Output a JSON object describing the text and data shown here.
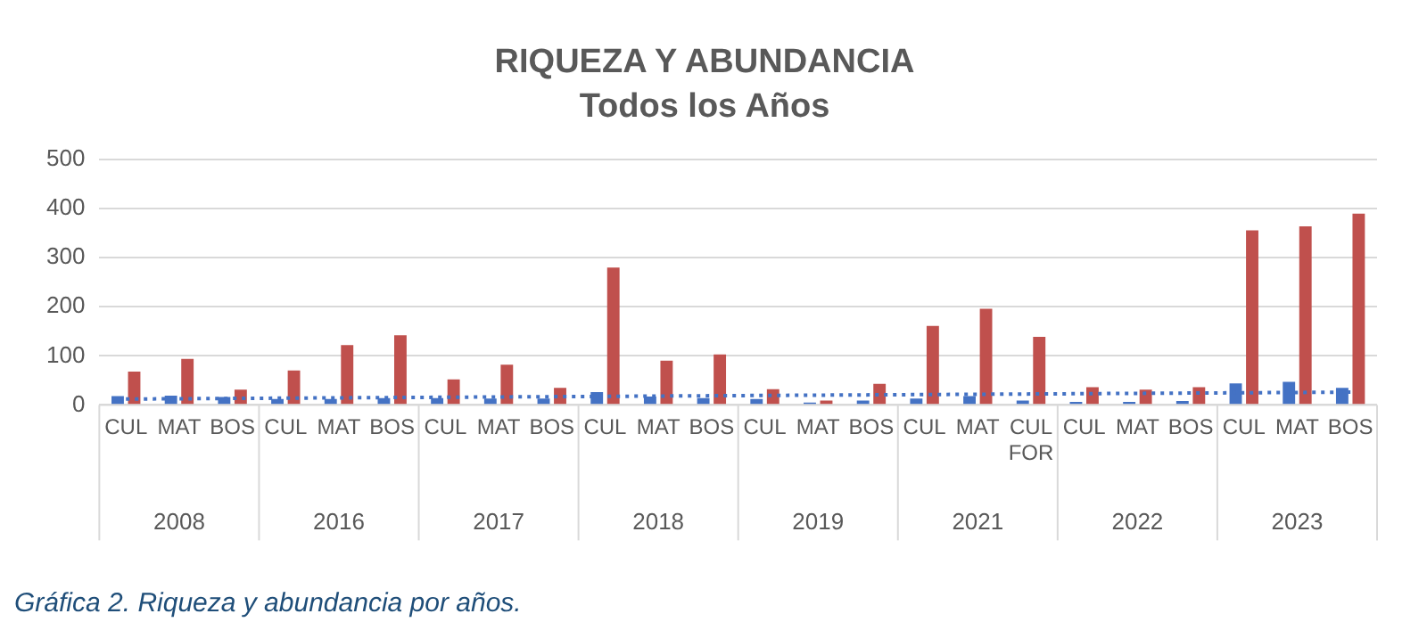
{
  "chart_data": {
    "type": "bar",
    "title": "RIQUEZA Y ABUNDANCIA",
    "subtitle": "Todos los Años",
    "categories": [
      "CUL",
      "MAT",
      "BOS",
      "CUL",
      "MAT",
      "BOS",
      "CUL",
      "MAT",
      "BOS",
      "CUL",
      "MAT",
      "BOS",
      "CUL",
      "MAT",
      "BOS",
      "CUL",
      "MAT",
      "CUL FOR",
      "CUL",
      "MAT",
      "BOS",
      "CUL",
      "MAT",
      "BOS"
    ],
    "series": [
      {
        "color": "#4472c4",
        "values": [
          18,
          19,
          16,
          12,
          12,
          14,
          14,
          13,
          13,
          26,
          17,
          14,
          12,
          5,
          9,
          13,
          18,
          9,
          6,
          6,
          8,
          44,
          47,
          35
        ]
      },
      {
        "color": "#c0504d",
        "values": [
          68,
          94,
          31,
          70,
          122,
          142,
          52,
          82,
          35,
          280,
          90,
          103,
          32,
          9,
          43,
          161,
          196,
          139,
          36,
          31,
          36,
          356,
          364,
          390
        ]
      },
      {
        "type": "line",
        "color": "#4472c4",
        "line_style": "dotted",
        "values": [
          12,
          null,
          null,
          null,
          null,
          null,
          null,
          null,
          null,
          null,
          null,
          null,
          null,
          null,
          null,
          null,
          null,
          null,
          null,
          null,
          null,
          null,
          null,
          26
        ]
      }
    ],
    "ylim": [
      0,
      500
    ],
    "yticks": [
      0,
      100,
      200,
      300,
      400,
      500
    ],
    "grid": "y",
    "legend": false,
    "annotations": [
      "2008",
      "2016",
      "2017",
      "2018",
      "2019",
      "2021",
      "2022",
      "2023",
      "Gráfica 2. Riqueza y abundancia por años."
    ]
  }
}
